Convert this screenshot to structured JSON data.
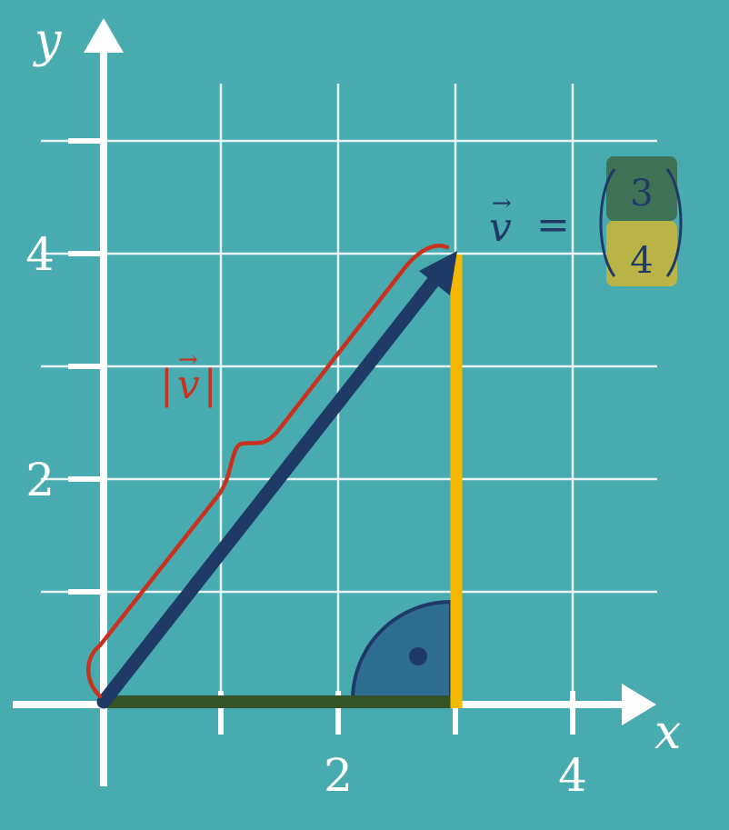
{
  "axes": {
    "x_label": "x",
    "y_label": "y",
    "x_ticks": [
      {
        "value": 1,
        "label": ""
      },
      {
        "value": 2,
        "label": "2"
      },
      {
        "value": 3,
        "label": ""
      },
      {
        "value": 4,
        "label": "4"
      }
    ],
    "y_ticks": [
      {
        "value": 1,
        "label": ""
      },
      {
        "value": 2,
        "label": "2"
      },
      {
        "value": 3,
        "label": ""
      },
      {
        "value": 4,
        "label": "4"
      },
      {
        "value": 5,
        "label": ""
      }
    ]
  },
  "vector": {
    "symbol": "v",
    "arrow_glyph": "→",
    "equals": "=",
    "x_component": "3",
    "y_component": "4",
    "magnitude_label_open": "|",
    "magnitude_label_close": "|"
  },
  "colors": {
    "background": "#47abaf",
    "grid": "#e8f4f4",
    "axis": "#ffffff",
    "vector": "#1f3a66",
    "x_component_line": "#355327",
    "y_component_line": "#f5b800",
    "brace": "#c8321e",
    "right_angle_fill": "#2e6e91",
    "x_component_box": "#3f7358",
    "y_component_box": "#b9b445"
  }
}
